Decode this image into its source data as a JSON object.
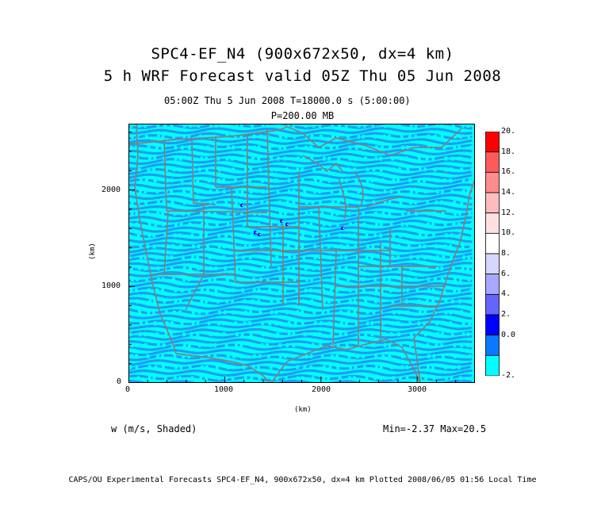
{
  "title_line1": "SPC4-EF_N4 (900x672x50, dx=4 km)",
  "title_line2": "5 h WRF Forecast valid 05Z Thu 05 Jun 2008",
  "time_info": "05:00Z Thu  5 Jun 2008    T=18000.0 s (5:00:00)",
  "level_info": "P=200.00 MB",
  "variable_label": "w (m/s, Shaded)",
  "min_max": "Min=-2.37 Max=20.5",
  "footer": "CAPS/OU Experimental Forecasts  SPC4-EF_N4, 900x672x50, dx=4 km  Plotted 2008/06/05 01:56 Local Time",
  "x_axis": {
    "label": "(km)",
    "ticks": [
      "0",
      "1000",
      "2000",
      "3000"
    ],
    "range": [
      0,
      3600
    ]
  },
  "y_axis": {
    "label": "(km)",
    "ticks": [
      "0",
      "1000",
      "2000"
    ],
    "range": [
      0,
      2688
    ]
  },
  "colorbar": {
    "labels": [
      "20.",
      "18.",
      "16.",
      "14.",
      "12.",
      "10.",
      "8.",
      "6.",
      "4.",
      "2.",
      "0.0",
      "-2."
    ],
    "colors": [
      "#ff0000",
      "#ff5a5a",
      "#ff8c8c",
      "#ffbcbc",
      "#ffe0e0",
      "#ffffff",
      "#d6d6ff",
      "#a8a8ff",
      "#6464ff",
      "#0000ff",
      "#0a78ff",
      "#00ffff"
    ]
  },
  "map_colors": {
    "field": "#00ffff",
    "band": "#1e9cf2",
    "borders": "#808080"
  }
}
